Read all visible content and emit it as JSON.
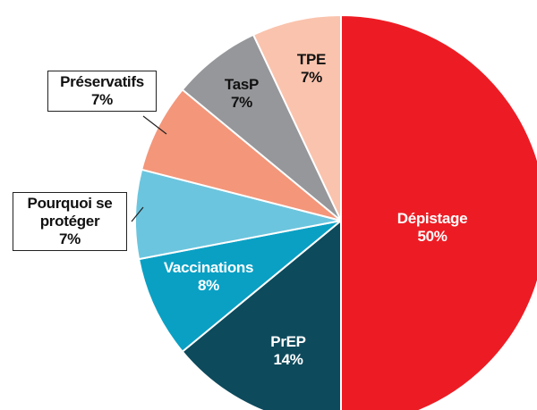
{
  "chart_data": {
    "type": "pie",
    "categories": [
      "Dépistage",
      "PrEP",
      "Vaccinations",
      "Pourquoi se protéger",
      "Préservatifs",
      "TasP",
      "TPE"
    ],
    "values": [
      50,
      14,
      8,
      7,
      7,
      7,
      7
    ],
    "value_labels": [
      "50%",
      "14%",
      "8%",
      "7%",
      "7%",
      "7%",
      "7%"
    ],
    "colors": [
      "#ed1c24",
      "#0d4a5c",
      "#0aa0c4",
      "#6cc5de",
      "#f4967a",
      "#96979b",
      "#fac3ad"
    ]
  }
}
